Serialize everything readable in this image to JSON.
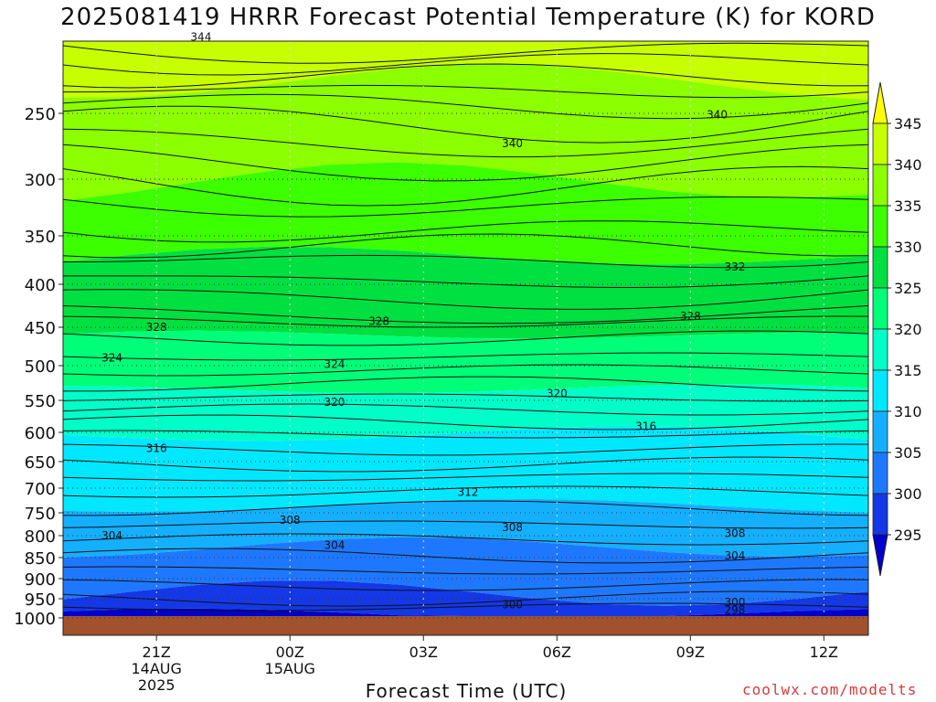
{
  "chart_data": {
    "type": "heatmap",
    "title": "2025081419 HRRR Forecast Potential Temperature (K) for KORD",
    "xlabel": "Forecast Time (UTC)",
    "ylabel": "",
    "credit": "coolwx.com/modelts",
    "y_ticks": [
      "250",
      "300",
      "350",
      "400",
      "450",
      "500",
      "550",
      "600",
      "650",
      "700",
      "750",
      "800",
      "850",
      "900",
      "950",
      "1000"
    ],
    "y_tick_values": [
      250,
      300,
      350,
      400,
      450,
      500,
      550,
      600,
      650,
      700,
      750,
      800,
      850,
      900,
      950,
      1000
    ],
    "x_ticks": [
      {
        "label": "21Z",
        "sub1": "14AUG",
        "sub2": "2025",
        "hour": 2
      },
      {
        "label": "00Z",
        "sub1": "15AUG",
        "sub2": "",
        "hour": 5
      },
      {
        "label": "03Z",
        "sub1": "",
        "sub2": "",
        "hour": 8
      },
      {
        "label": "06Z",
        "sub1": "",
        "sub2": "",
        "hour": 11
      },
      {
        "label": "09Z",
        "sub1": "",
        "sub2": "",
        "hour": 14
      },
      {
        "label": "12Z",
        "sub1": "",
        "sub2": "",
        "hour": 17
      }
    ],
    "xlim": [
      -0.1,
      18.0
    ],
    "levels": [
      295,
      300,
      305,
      310,
      315,
      320,
      325,
      330,
      335,
      340,
      345
    ],
    "colorbar_labels": [
      "345",
      "340",
      "335",
      "330",
      "325",
      "320",
      "315",
      "310",
      "305",
      "300",
      "295"
    ],
    "colors": [
      "#0000cc",
      "#1438e6",
      "#1e78ff",
      "#14b0ff",
      "#00e8ff",
      "#00ffc8",
      "#00ff78",
      "#00e040",
      "#3cff00",
      "#8cff00",
      "#c8ff00",
      "#ffff00"
    ],
    "ground_color": "#a0522d",
    "contour_labels": [
      {
        "text": "344",
        "hour": 3.0,
        "pressure": 192
      },
      {
        "text": "340",
        "hour": 10.0,
        "pressure": 273
      },
      {
        "text": "340",
        "hour": 14.6,
        "pressure": 251
      },
      {
        "text": "332",
        "hour": 15.0,
        "pressure": 382
      },
      {
        "text": "328",
        "hour": 2.0,
        "pressure": 450
      },
      {
        "text": "328",
        "hour": 7.0,
        "pressure": 443
      },
      {
        "text": "328",
        "hour": 14.0,
        "pressure": 437
      },
      {
        "text": "324",
        "hour": 1.0,
        "pressure": 490
      },
      {
        "text": "324",
        "hour": 6.0,
        "pressure": 498
      },
      {
        "text": "320",
        "hour": 6.0,
        "pressure": 553
      },
      {
        "text": "320",
        "hour": 11.0,
        "pressure": 540
      },
      {
        "text": "316",
        "hour": 2.0,
        "pressure": 627
      },
      {
        "text": "316",
        "hour": 13.0,
        "pressure": 591
      },
      {
        "text": "312",
        "hour": 9.0,
        "pressure": 708
      },
      {
        "text": "308",
        "hour": 5.0,
        "pressure": 766
      },
      {
        "text": "308",
        "hour": 10.0,
        "pressure": 782
      },
      {
        "text": "308",
        "hour": 15.0,
        "pressure": 795
      },
      {
        "text": "304",
        "hour": 1.0,
        "pressure": 800
      },
      {
        "text": "304",
        "hour": 6.0,
        "pressure": 822
      },
      {
        "text": "304",
        "hour": 15.0,
        "pressure": 846
      },
      {
        "text": "300",
        "hour": 10.0,
        "pressure": 966
      },
      {
        "text": "300",
        "hour": 15.0,
        "pressure": 960
      },
      {
        "text": "298",
        "hour": 15.0,
        "pressure": 980
      }
    ]
  }
}
